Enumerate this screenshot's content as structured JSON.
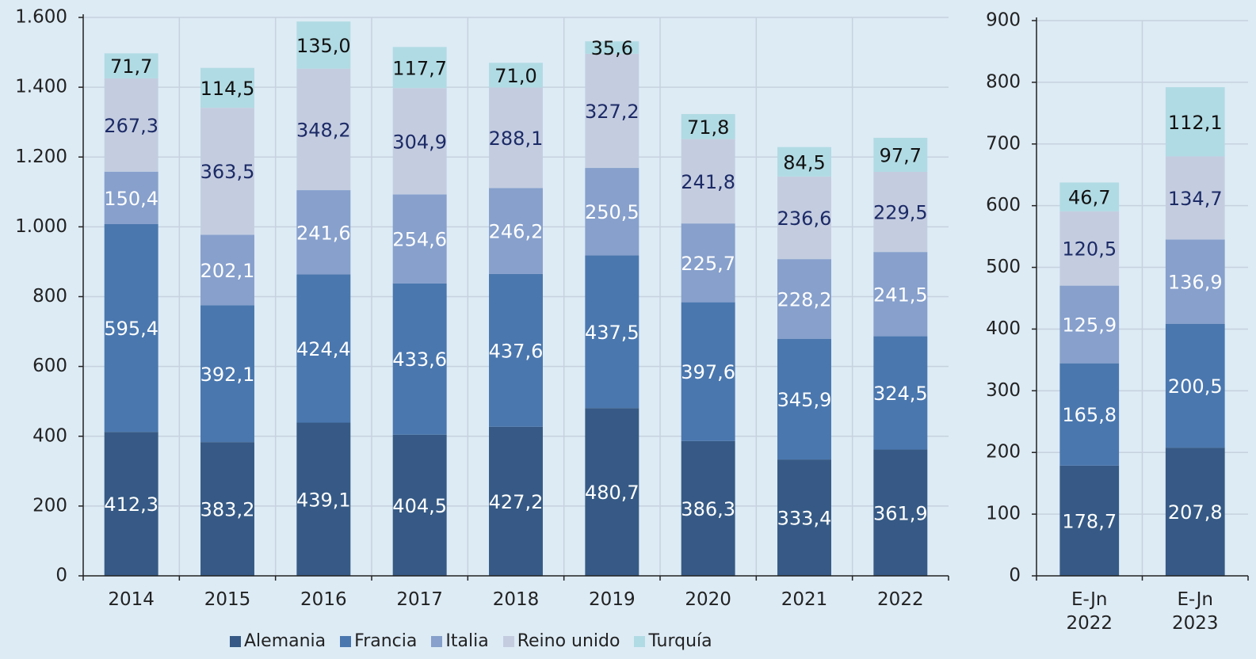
{
  "chart_data": [
    {
      "type": "bar",
      "stacked": true,
      "categories": [
        "2014",
        "2015",
        "2016",
        "2017",
        "2018",
        "2019",
        "2020",
        "2021",
        "2022"
      ],
      "ylim": [
        0,
        1600
      ],
      "yticks": [
        0,
        200,
        400,
        600,
        800,
        {
          "value": 1000,
          "label": "1.000"
        },
        {
          "value": 1200,
          "label": "1.200"
        },
        {
          "value": 1400,
          "label": "1.400"
        },
        {
          "value": 1600,
          "label": "1.600"
        }
      ],
      "grid": true,
      "legend": "bottom",
      "series": [
        {
          "name": "Alemania",
          "color": "#365a85",
          "label_color": "#ffffff",
          "values": [
            412.3,
            383.2,
            439.1,
            404.5,
            427.2,
            480.7,
            386.3,
            333.4,
            361.9
          ],
          "value_labels": [
            "412,3",
            "383,2",
            "439,1",
            "404,5",
            "427,2",
            "480,7",
            "386,3",
            "333,4",
            "361,9"
          ]
        },
        {
          "name": "Francia",
          "color": "#4a77ae",
          "label_color": "#ffffff",
          "values": [
            595.4,
            392.1,
            424.4,
            433.6,
            437.6,
            437.5,
            397.6,
            345.9,
            324.5
          ],
          "value_labels": [
            "595,4",
            "392,1",
            "424,4",
            "433,6",
            "437,6",
            "437,5",
            "397,6",
            "345,9",
            "324,5"
          ]
        },
        {
          "name": "Italia",
          "color": "#87a0cc",
          "label_color": "#ffffff",
          "values": [
            150.4,
            202.1,
            241.6,
            254.6,
            246.2,
            250.5,
            225.7,
            228.2,
            241.5
          ],
          "value_labels": [
            "150,4",
            "202,1",
            "241,6",
            "254,6",
            "246,2",
            "250,5",
            "225,7",
            "228,2",
            "241,5"
          ]
        },
        {
          "name": "Reino unido",
          "color": "#c4cde0",
          "label_color": "#1c2a66",
          "values": [
            267.3,
            363.5,
            348.2,
            304.9,
            288.1,
            327.2,
            241.8,
            236.6,
            229.5
          ],
          "value_labels": [
            "267,3",
            "363,5",
            "348,2",
            "304,9",
            "288,1",
            "327,2",
            "241,8",
            "236,6",
            "229,5"
          ]
        },
        {
          "name": "Turquía",
          "color": "#b1dbe4",
          "label_color": "#111111",
          "values": [
            71.7,
            114.5,
            135.0,
            117.7,
            71.0,
            35.6,
            71.8,
            84.5,
            97.7
          ],
          "value_labels": [
            "71,7",
            "114,5",
            "135,0",
            "117,7",
            "71,0",
            "35,6",
            "71,8",
            "84,5",
            "97,7"
          ]
        }
      ]
    },
    {
      "type": "bar",
      "stacked": true,
      "categories": [
        "E-Jn 2022",
        "E-Jn 2023"
      ],
      "ylim": [
        0,
        900
      ],
      "yticks": [
        0,
        100,
        200,
        300,
        400,
        500,
        600,
        700,
        800,
        900
      ],
      "grid": true,
      "series": [
        {
          "color": "#365a85",
          "label_color": "#ffffff",
          "values": [
            178.7,
            207.8
          ],
          "value_labels": [
            "178,7",
            "207,8"
          ]
        },
        {
          "color": "#4a77ae",
          "label_color": "#ffffff",
          "values": [
            165.8,
            200.5
          ],
          "value_labels": [
            "165,8",
            "200,5"
          ]
        },
        {
          "color": "#87a0cc",
          "label_color": "#ffffff",
          "values": [
            125.9,
            136.9
          ],
          "value_labels": [
            "125,9",
            "136,9"
          ]
        },
        {
          "color": "#c4cde0",
          "label_color": "#1c2a66",
          "values": [
            120.5,
            134.7
          ],
          "value_labels": [
            "120,5",
            "134,7"
          ]
        },
        {
          "color": "#b1dbe4",
          "label_color": "#111111",
          "values": [
            46.7,
            112.1
          ],
          "value_labels": [
            "46,7",
            "112,1"
          ]
        }
      ]
    }
  ]
}
